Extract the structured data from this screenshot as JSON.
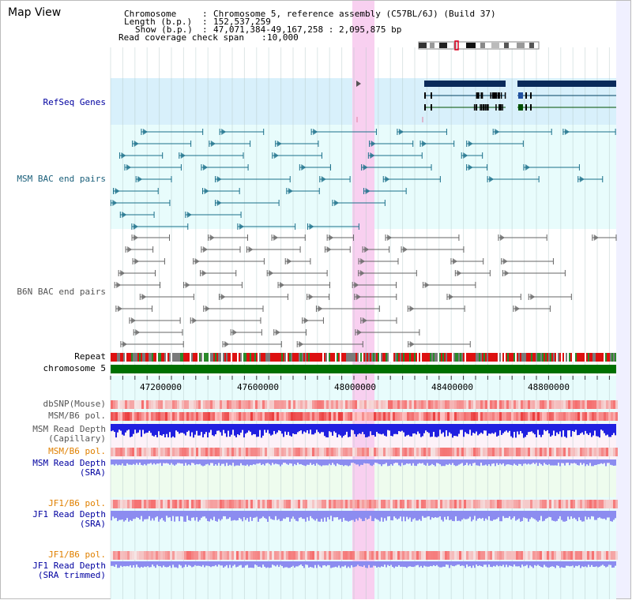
{
  "title": "Map View",
  "info": {
    "chromosome_key": "Chromosome",
    "chromosome_val": "Chromosome 5, reference assembly (C57BL/6J) (Build 37)",
    "length_key": "Length (b.p.)",
    "length_val": "152,537,259",
    "show_key": "Show (b.p.)",
    "show_val": "47,071,384-49,167,258 : 2,095,875 bp",
    "coverage_key": "Read coverage check span",
    "coverage_val": "10,000"
  },
  "tracks": {
    "refseq": "RefSeq Genes",
    "msm_bac": "MSM BAC end pairs",
    "b6n_bac": "B6N BAC end pairs",
    "repeat": "Repeat",
    "chromosome": "chromosome 5",
    "dbsnp": "dbSNP(Mouse)",
    "msm_b6_pol1": "MSM/B6 pol.",
    "msm_depth_cap_1": "MSM Read Depth",
    "msm_depth_cap_2": "(Capillary)",
    "msm_b6_pol2": "MSM/B6 pol.",
    "msm_depth_sra_1": "MSM Read Depth",
    "msm_depth_sra_2": "(SRA)",
    "jf1_b6_pol1": "JF1/B6 pol.",
    "jf1_depth_sra_1": "JF1 Read Depth",
    "jf1_depth_sra_2": "(SRA)",
    "jf1_b6_pol2": "JF1/B6 pol.",
    "jf1_depth_trim_1": "JF1 Read Depth",
    "jf1_depth_trim_2": "(SRA trimmed)"
  },
  "axis_ticks": [
    "47200000",
    "47600000",
    "48000000",
    "48400000",
    "48800000"
  ],
  "colors": {
    "label_blue": "#0000a0",
    "label_teal": "#1a5f7a",
    "label_gray": "#555555",
    "label_orange": "#e08000",
    "highlight": "#f8d0f0",
    "refseq_bg": "#d8f0fb",
    "bac_bg": "#e8fcfc",
    "chromosome_bar": "#007000",
    "depth_blue": "#2020e0",
    "depth_light": "#8c8cf0"
  }
}
